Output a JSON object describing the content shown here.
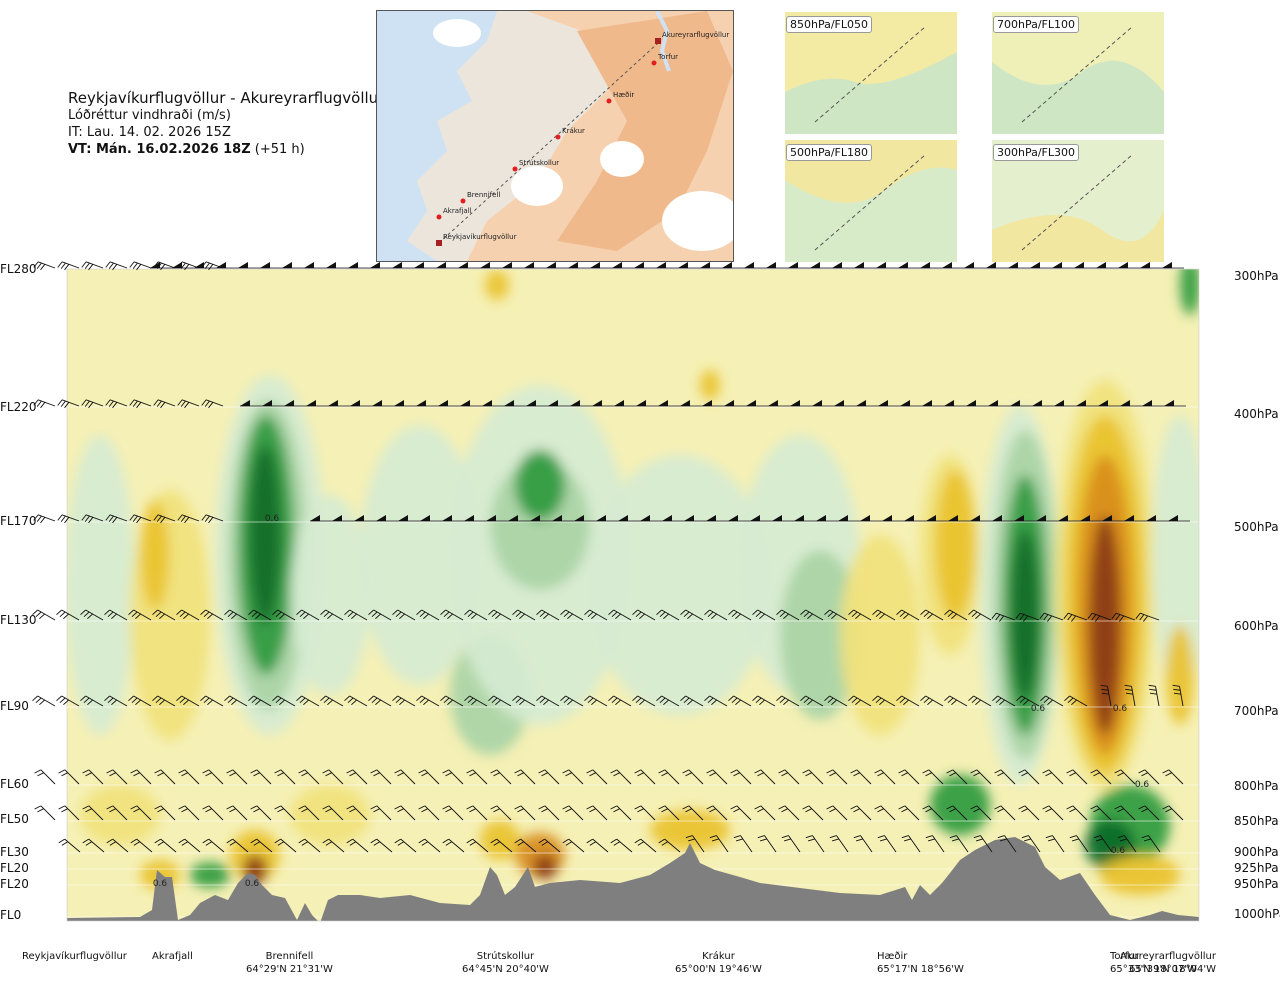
{
  "title": {
    "route": "Reykjavíkurflugvöllur - Akureyrarflugvöllur",
    "variable": "Lóðréttur vindhraði (m/s)",
    "it": "IT: Lau. 14. 02. 2026 15Z",
    "vt": "VT: Mán. 16.02.2026 18Z",
    "vt_lead": "(+51 h)"
  },
  "route_map": {
    "waypoints": [
      "Akureyrarflugvöllur",
      "Torfur",
      "Hæðir",
      "Krákur",
      "Strútskollur",
      "Brennifell",
      "Akrafjall",
      "Reykjavíkurflugvöllur"
    ]
  },
  "minimaps": [
    {
      "label": "850hPa/FL050"
    },
    {
      "label": "700hPa/FL100"
    },
    {
      "label": "500hPa/FL180"
    },
    {
      "label": "300hPa/FL300"
    }
  ],
  "levels": [
    {
      "fl": "FL280",
      "hpa": "300hPa"
    },
    {
      "fl": "FL220",
      "hpa": "400hPa"
    },
    {
      "fl": "FL170",
      "hpa": "500hPa"
    },
    {
      "fl": "FL130",
      "hpa": "600hPa"
    },
    {
      "fl": "FL90",
      "hpa": "700hPa"
    },
    {
      "fl": "FL60",
      "hpa": "800hPa"
    },
    {
      "fl": "FL50",
      "hpa": "850hPa"
    },
    {
      "fl": "FL30",
      "hpa": "900hPa"
    },
    {
      "fl": "FL20",
      "hpa": "925hPa"
    },
    {
      "fl": "FL20",
      "hpa": "950hPa"
    },
    {
      "fl": "FL0",
      "hpa": "1000hPa"
    }
  ],
  "stations": [
    {
      "name": "Reykjavíkurflugvöllur",
      "coord": ""
    },
    {
      "name": "Akrafjall",
      "coord": ""
    },
    {
      "name": "Brennifell",
      "coord": "64°29'N 21°31'W"
    },
    {
      "name": "Strútskollur",
      "coord": "64°45'N 20°40'W"
    },
    {
      "name": "Krákur",
      "coord": "65°00'N 19°46'W"
    },
    {
      "name": "Hæðir",
      "coord": "65°17'N 18°56'W"
    },
    {
      "name": "Torfur",
      "coord": "65°33'N 18°07'W"
    },
    {
      "name": "Akureyrarflugvöllur",
      "coord": "65°39'N 18°04'W"
    }
  ],
  "chart_data": {
    "type": "heatmap",
    "title": "Lóðréttur vindhraði (m/s)",
    "ylabel_left": [
      "FL280",
      "FL220",
      "FL170",
      "FL130",
      "FL90",
      "FL60",
      "FL50",
      "FL30",
      "FL20",
      "FL20",
      "FL0"
    ],
    "ylabel_right": [
      "300hPa",
      "400hPa",
      "500hPa",
      "600hPa",
      "700hPa",
      "800hPa",
      "850hPa",
      "900hPa",
      "925hPa",
      "950hPa",
      "1000hPa"
    ],
    "pressure_levels_hpa": [
      300,
      400,
      500,
      600,
      700,
      800,
      850,
      900,
      925,
      950,
      1000
    ],
    "x_stations": [
      "Reykjavíkurflugvöllur",
      "Akrafjall",
      "Brennifell",
      "Strútskollur",
      "Krákur",
      "Hæðir",
      "Torfur",
      "Akureyrarflugvöllur"
    ],
    "contour_labels": [
      "0.6",
      "0.6",
      "0.6",
      "0.6",
      "0.6",
      "0.6",
      "0.6"
    ],
    "colors": {
      "strong_down": "#0f6b2a",
      "down": "#2e9a3e",
      "weak_down": "#a9d4a6",
      "very_weak_down": "#d6ecd2",
      "neutral": "#f5f0b5",
      "weak_up": "#f1e27b",
      "up": "#e9c22c",
      "strong_up": "#d88c1d",
      "very_strong_up": "#8a3a12",
      "terrain": "#7f7f7f"
    }
  }
}
